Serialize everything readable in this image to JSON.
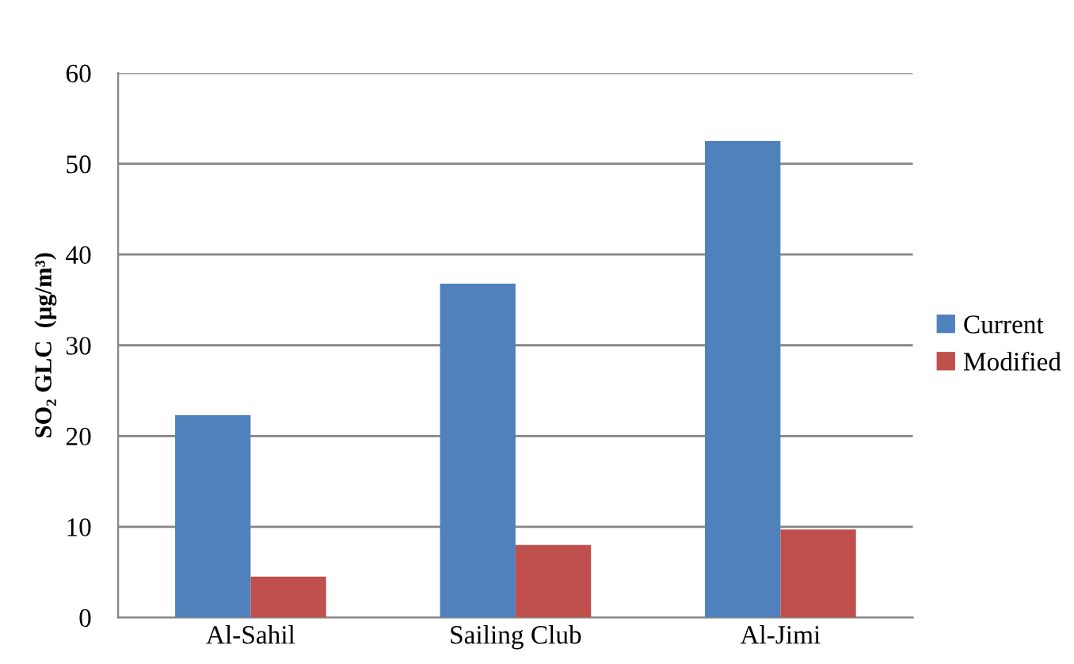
{
  "chart_data": {
    "type": "bar",
    "ylabel": "SO₂ GLC  (µg/m³)",
    "categories": [
      "Al-Sahil",
      "Sailing Club",
      "Al-Jimi"
    ],
    "series": [
      {
        "name": "Current",
        "color": "#4f81bd",
        "values": [
          22.3,
          36.8,
          52.5
        ]
      },
      {
        "name": "Modified",
        "color": "#c0504d",
        "values": [
          4.5,
          8.0,
          9.7
        ]
      }
    ],
    "ylim": [
      0,
      60
    ],
    "yticks": [
      0,
      10,
      20,
      30,
      40,
      50,
      60
    ],
    "grid": "y",
    "legend": "right"
  }
}
